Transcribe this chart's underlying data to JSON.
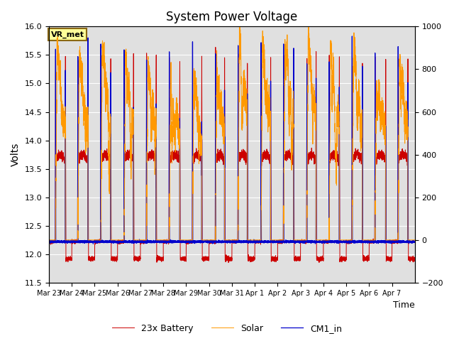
{
  "title": "System Power Voltage",
  "xlabel": "Time",
  "ylabel": "Volts",
  "ylim_left": [
    11.5,
    16.0
  ],
  "ylim_right": [
    -200,
    1000
  ],
  "background_color": "#ffffff",
  "plot_bg_color": "#e0e0e0",
  "grid_color": "#ffffff",
  "annotation_text": "VR_met",
  "annotation_bg": "#ffff99",
  "annotation_border": "#8B6914",
  "legend_labels": [
    "23x Battery",
    "Solar",
    "CM1_in"
  ],
  "legend_colors": [
    "#cc0000",
    "#ff9900",
    "#0000cc"
  ],
  "xtick_labels": [
    "Mar 23",
    "Mar 24",
    "Mar 25",
    "Mar 26",
    "Mar 27",
    "Mar 28",
    "Mar 29",
    "Mar 30",
    "Mar 31",
    "Apr 1",
    "Apr 2",
    "Apr 3",
    "Apr 4",
    "Apr 5",
    "Apr 6",
    "Apr 7"
  ],
  "n_days": 16
}
